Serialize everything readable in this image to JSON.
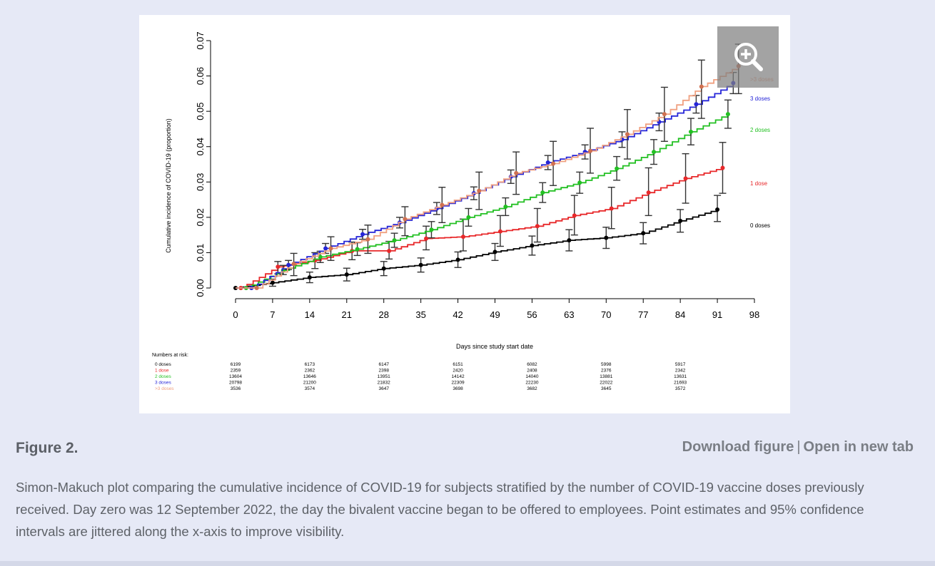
{
  "figure": {
    "title": "Figure 2.",
    "download_label": "Download figure",
    "separator": "|",
    "open_label": "Open in new tab",
    "caption": "Simon-Makuch plot comparing the cumulative incidence of COVID-19 for subjects stratified by the number of COVID-19 vaccine doses previously received. Day zero was 12 September 2022, the day the bivalent vaccine began to be offered to employees. Point estimates and 95% confidence intervals are jittered along the x-axis to improve visibility.",
    "zoom_icon": "zoom-in-icon"
  },
  "chart_data": {
    "type": "line",
    "title": "",
    "xlabel": "Days since study start date",
    "ylabel": "Cumulative incidence of COVID-19 (proportion)",
    "xlim": [
      0,
      98
    ],
    "ylim": [
      0,
      0.07
    ],
    "x_ticks": [
      "0",
      "7",
      "14",
      "21",
      "28",
      "35",
      "42",
      "49",
      "56",
      "63",
      "70",
      "77",
      "84",
      "91",
      "98"
    ],
    "y_ticks": [
      "0.00",
      "0.01",
      "0.02",
      "0.03",
      "0.04",
      "0.05",
      "0.06",
      "0.07"
    ],
    "series": [
      {
        "name": "0 doses",
        "color": "#000000",
        "x": [
          0,
          7,
          14,
          21,
          28,
          35,
          42,
          49,
          56,
          63,
          70,
          77,
          84,
          91
        ],
        "values": [
          0.0,
          0.0015,
          0.003,
          0.0038,
          0.0055,
          0.0065,
          0.008,
          0.0102,
          0.012,
          0.0135,
          0.0142,
          0.0155,
          0.019,
          0.0222
        ],
        "lower": [
          0.0,
          0.0005,
          0.0015,
          0.002,
          0.0035,
          0.0045,
          0.0058,
          0.0078,
          0.0093,
          0.0105,
          0.0112,
          0.0125,
          0.0158,
          0.0188
        ],
        "upper": [
          0.0,
          0.0025,
          0.0045,
          0.0056,
          0.0075,
          0.0085,
          0.0102,
          0.0126,
          0.0147,
          0.0165,
          0.0172,
          0.0185,
          0.0222,
          0.0262
        ]
      },
      {
        "name": "1 dose",
        "color": "#e8282a",
        "x": [
          1,
          8,
          15,
          22,
          29,
          36,
          43,
          50,
          57,
          64,
          71,
          78,
          85,
          92
        ],
        "values": [
          0.0,
          0.006,
          0.0078,
          0.0105,
          0.0105,
          0.014,
          0.0145,
          0.016,
          0.0175,
          0.0205,
          0.0225,
          0.027,
          0.031,
          0.034
        ],
        "lower": [
          0.0,
          0.004,
          0.0055,
          0.008,
          0.0082,
          0.0108,
          0.0105,
          0.0118,
          0.013,
          0.015,
          0.0168,
          0.0205,
          0.024,
          0.0268
        ],
        "upper": [
          0.0,
          0.0075,
          0.01,
          0.013,
          0.0132,
          0.0175,
          0.0195,
          0.0205,
          0.0225,
          0.0262,
          0.0285,
          0.034,
          0.038,
          0.0412
        ]
      },
      {
        "name": "2 doses",
        "color": "#22c022",
        "x": [
          2,
          9,
          16,
          23,
          30,
          37,
          44,
          51,
          58,
          65,
          72,
          79,
          86,
          93
        ],
        "values": [
          0.0,
          0.005,
          0.0088,
          0.011,
          0.0135,
          0.0165,
          0.02,
          0.023,
          0.027,
          0.0298,
          0.0338,
          0.0385,
          0.0442,
          0.0492
        ],
        "lower": [
          0.0,
          0.0038,
          0.0072,
          0.0092,
          0.0115,
          0.0142,
          0.0175,
          0.0205,
          0.0242,
          0.0268,
          0.0305,
          0.035,
          0.0405,
          0.0452
        ],
        "upper": [
          0.0,
          0.0064,
          0.0104,
          0.0128,
          0.0155,
          0.0188,
          0.0225,
          0.0255,
          0.0298,
          0.0328,
          0.0372,
          0.042,
          0.048,
          0.0532
        ]
      },
      {
        "name": "3 doses",
        "color": "#2525d8",
        "x": [
          3,
          10,
          17,
          24,
          31,
          38,
          45,
          52,
          59,
          66,
          73,
          80,
          87,
          94
        ],
        "values": [
          0.0,
          0.0065,
          0.0112,
          0.0152,
          0.0185,
          0.0225,
          0.0268,
          0.0315,
          0.0355,
          0.0385,
          0.042,
          0.047,
          0.052,
          0.058
        ],
        "lower": [
          0.0,
          0.0052,
          0.0098,
          0.0138,
          0.017,
          0.0208,
          0.025,
          0.0296,
          0.0335,
          0.0365,
          0.0398,
          0.0445,
          0.0495,
          0.055
        ],
        "upper": [
          0.0,
          0.0078,
          0.0126,
          0.0166,
          0.02,
          0.0242,
          0.0286,
          0.0334,
          0.0375,
          0.0405,
          0.0442,
          0.0495,
          0.0545,
          0.061
        ]
      },
      {
        "name": ">3 doses",
        "color": "#f0a080",
        "x": [
          4,
          11,
          18,
          25,
          32,
          39,
          46,
          53,
          60,
          67,
          74,
          81,
          88,
          95
        ],
        "values": [
          0.0,
          0.0068,
          0.0112,
          0.0138,
          0.0195,
          0.0235,
          0.0275,
          0.0325,
          0.0352,
          0.0388,
          0.0435,
          0.0492,
          0.057,
          0.0628
        ],
        "lower": [
          0.0,
          0.0035,
          0.0078,
          0.0098,
          0.0148,
          0.0185,
          0.0222,
          0.0265,
          0.029,
          0.0325,
          0.0365,
          0.0415,
          0.048,
          0.055
        ],
        "upper": [
          0.0,
          0.0098,
          0.0145,
          0.0178,
          0.023,
          0.0285,
          0.0328,
          0.0385,
          0.0415,
          0.0452,
          0.0505,
          0.0568,
          0.0645,
          0.069
        ]
      }
    ],
    "legend_labels": [
      "0 doses",
      "1 dose",
      "2 doses",
      "3 doses",
      ">3 doses"
    ],
    "risk_table": {
      "title": "Numbers at risk:",
      "groups": [
        "0 doses",
        "1 dose",
        "2 doses",
        "3 doses",
        ">3 doses"
      ],
      "days": [
        0,
        14,
        28,
        42,
        56,
        70,
        84
      ],
      "rows": [
        [
          "6199",
          "6173",
          "6147",
          "6151",
          "6082",
          "5998",
          "5917"
        ],
        [
          "2359",
          "2362",
          "2398",
          "2420",
          "2408",
          "2376",
          "2342"
        ],
        [
          "13604",
          "13646",
          "13951",
          "14142",
          "14040",
          "13881",
          "13631"
        ],
        [
          "20798",
          "21200",
          "21832",
          "22309",
          "22230",
          "22022",
          "21693"
        ],
        [
          "3536",
          "3574",
          "3647",
          "3698",
          "3682",
          "3645",
          "3572"
        ]
      ]
    }
  }
}
